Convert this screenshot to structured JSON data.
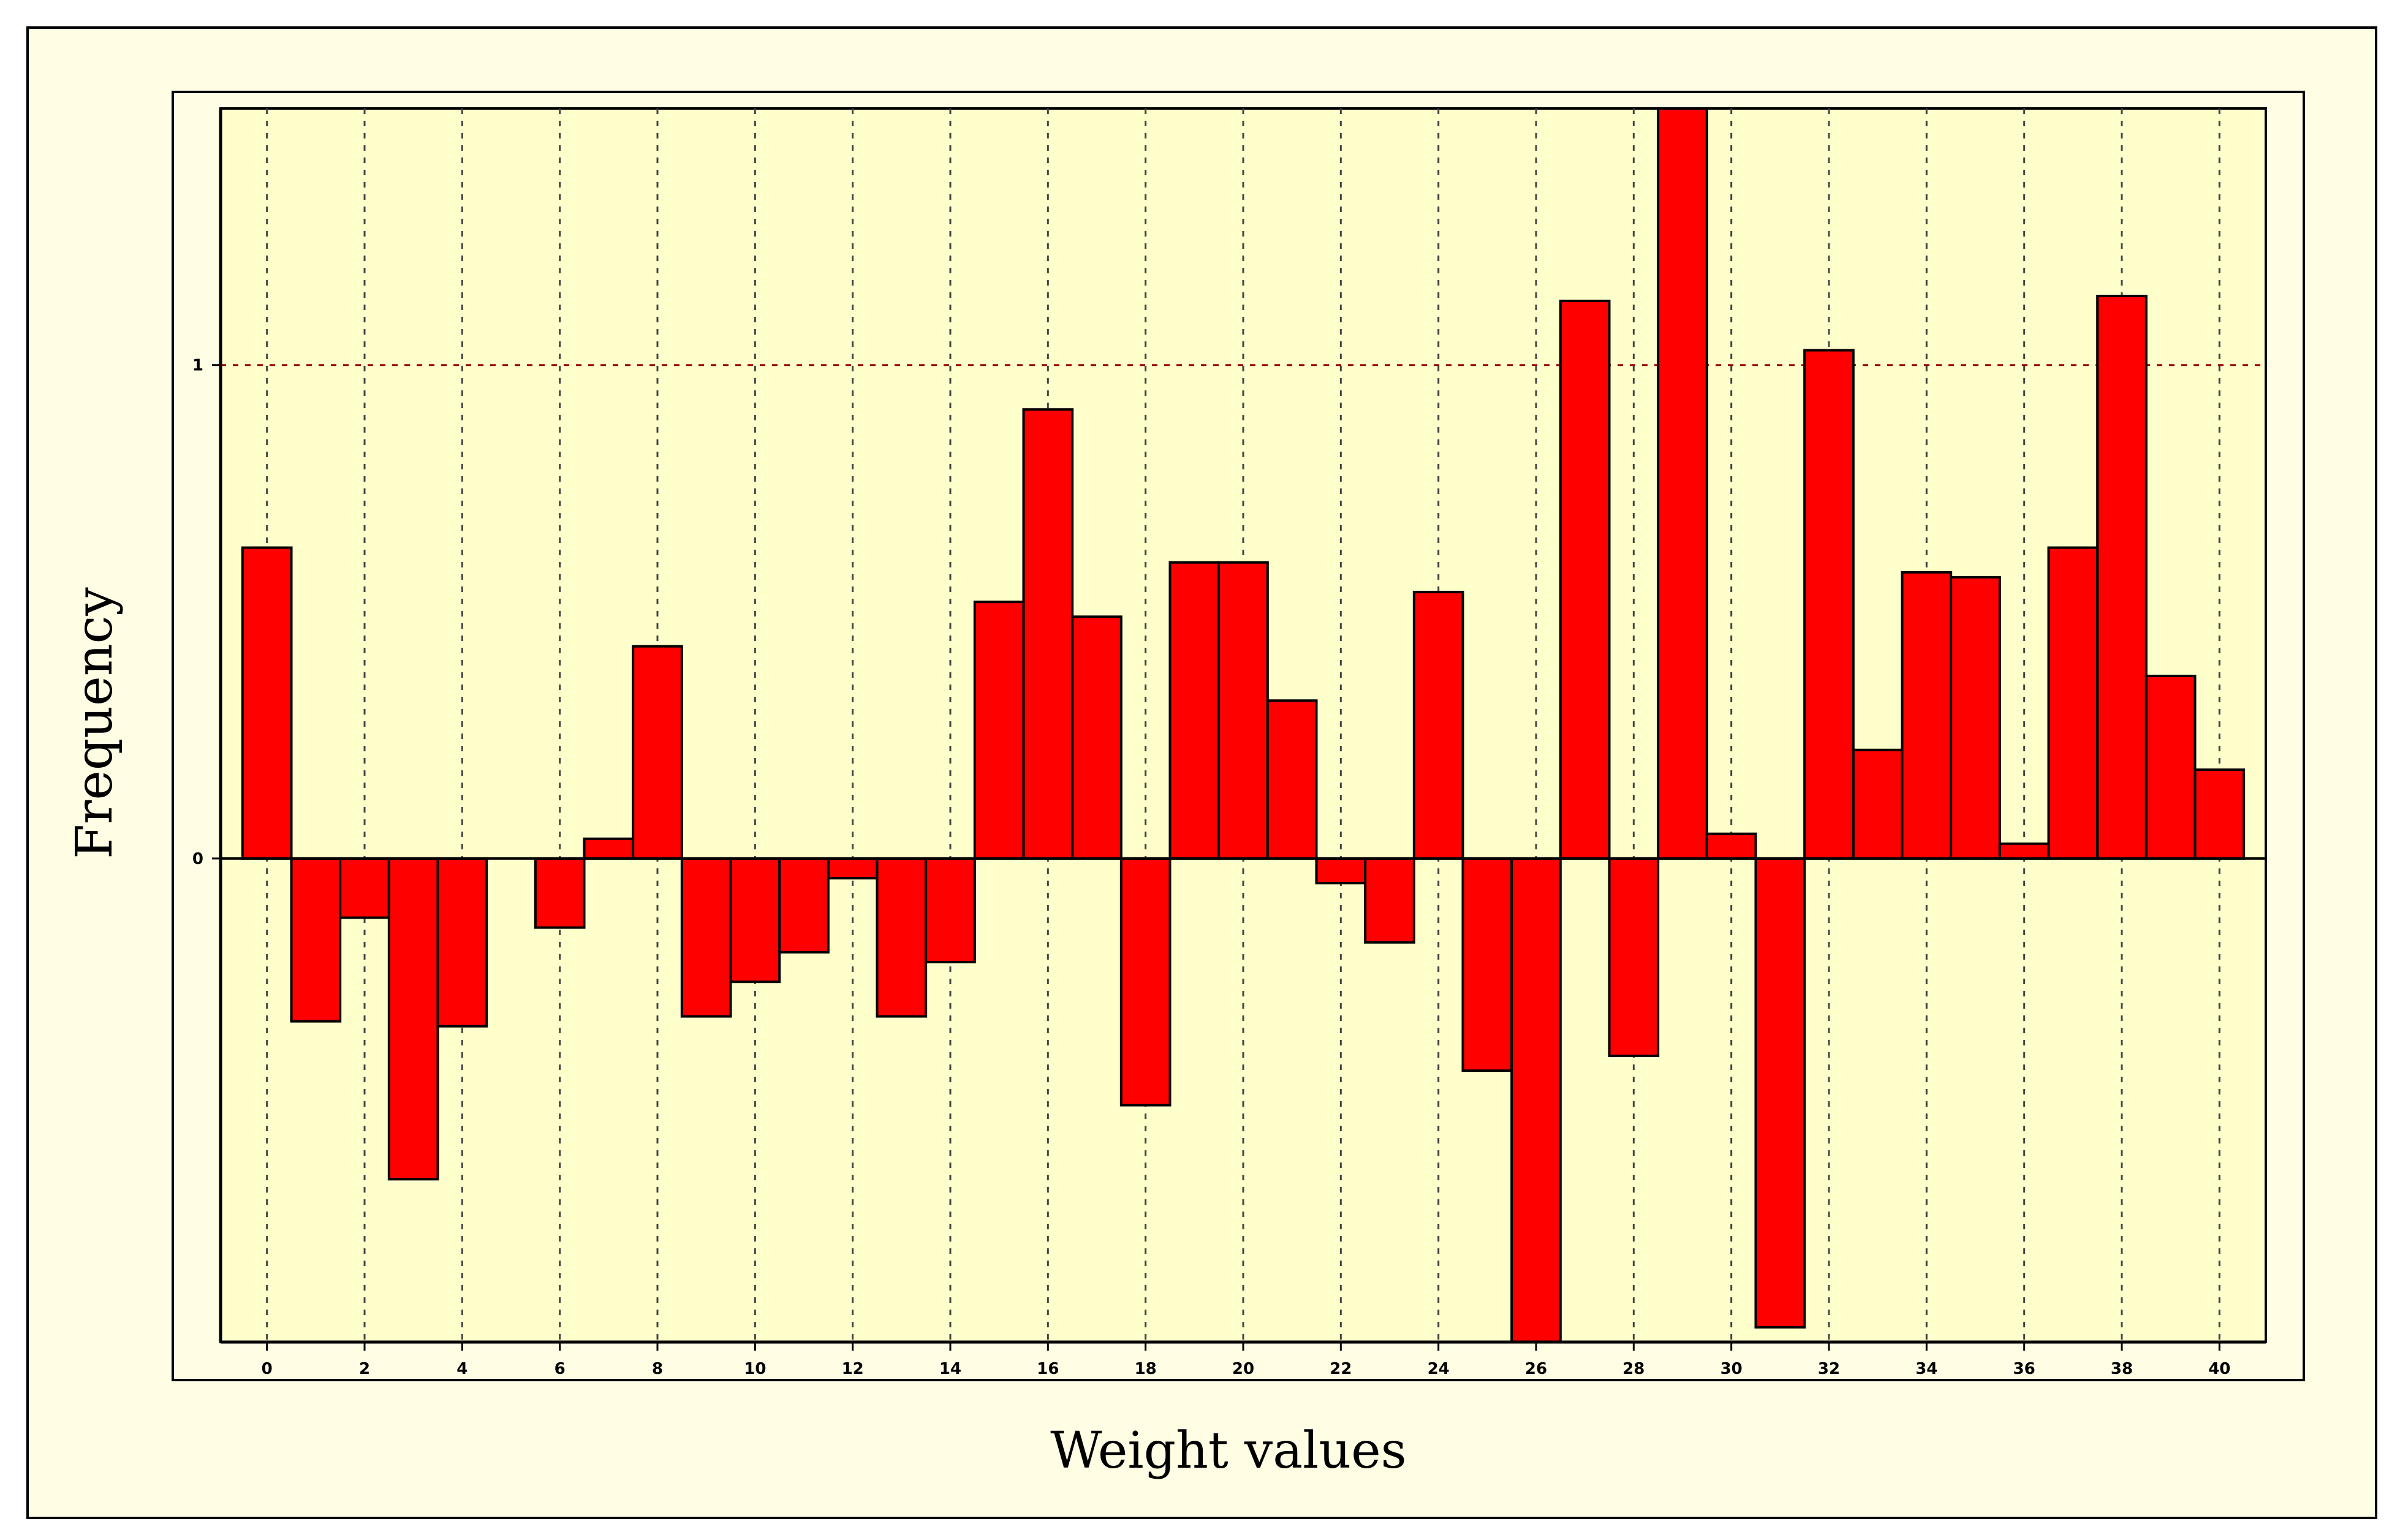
{
  "chart_data": {
    "type": "bar",
    "xlabel": "Weight values",
    "ylabel": "Frequency",
    "x": [
      0,
      1,
      2,
      3,
      4,
      5,
      6,
      7,
      8,
      9,
      10,
      11,
      12,
      13,
      14,
      15,
      16,
      17,
      18,
      19,
      20,
      21,
      22,
      23,
      24,
      25,
      26,
      27,
      28,
      29,
      30,
      31,
      32,
      33,
      34,
      35,
      36,
      37,
      38,
      39,
      40
    ],
    "values": [
      0.63,
      -0.33,
      -0.12,
      -0.65,
      -0.34,
      0.0,
      -0.14,
      0.04,
      0.43,
      -0.32,
      -0.25,
      -0.19,
      -0.04,
      -0.32,
      -0.21,
      0.52,
      0.91,
      0.49,
      -0.5,
      0.6,
      0.6,
      0.32,
      -0.05,
      -0.17,
      0.54,
      -0.43,
      -0.98,
      1.13,
      -0.4,
      1.52,
      0.05,
      -0.95,
      1.03,
      0.22,
      0.58,
      0.57,
      0.03,
      0.63,
      1.14,
      0.37,
      0.18
    ],
    "xticks": [
      0,
      2,
      4,
      6,
      8,
      10,
      12,
      14,
      16,
      18,
      20,
      22,
      24,
      26,
      28,
      30,
      32,
      34,
      36,
      38,
      40
    ],
    "xtick_labels": [
      "0",
      "2",
      "4",
      "6",
      "8",
      "10",
      "12",
      "14",
      "16",
      "18",
      "20",
      "22",
      "24",
      "26",
      "28",
      "30",
      "32",
      "34",
      "36",
      "38",
      "40"
    ],
    "yticks": [
      0,
      1
    ],
    "ytick_labels": [
      "0",
      "1"
    ],
    "xlim": [
      -0.95,
      40.95
    ],
    "ylim": [
      -0.98,
      1.52
    ],
    "grid": true,
    "legend": "none",
    "colors": {
      "bar": "#ff0000",
      "bar_edge": "#000000",
      "plot_bg": "#ffffcc",
      "frame_bg": "#fffee4",
      "grid_vertical": "#444444",
      "grid_horizontal": "#990000"
    }
  }
}
